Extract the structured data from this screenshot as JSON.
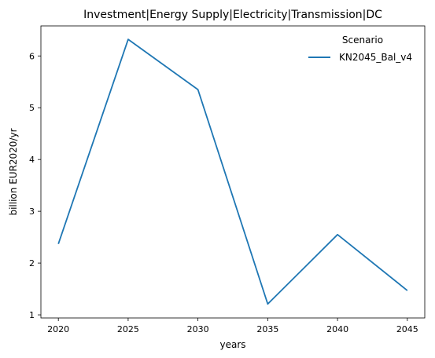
{
  "chart_data": {
    "type": "line",
    "title": "Investment|Energy Supply|Electricity|Transmission|DC",
    "xlabel": "years",
    "ylabel": "billion EUR2020/yr",
    "x": [
      2020,
      2025,
      2030,
      2035,
      2040,
      2045
    ],
    "xlim": [
      2018.75,
      2046.25
    ],
    "ylim": [
      0.94,
      6.58
    ],
    "xticks": [
      "2020",
      "2025",
      "2030",
      "2035",
      "2040",
      "2045"
    ],
    "yticks": [
      "1",
      "2",
      "3",
      "4",
      "5",
      "6"
    ],
    "grid": false,
    "legend": {
      "title": "Scenario",
      "placement": "top-right"
    },
    "series": [
      {
        "name": "KN2045_Bal_v4",
        "color": "#1f77b4",
        "values": [
          2.37,
          6.32,
          5.35,
          1.21,
          2.55,
          1.47
        ]
      }
    ]
  }
}
